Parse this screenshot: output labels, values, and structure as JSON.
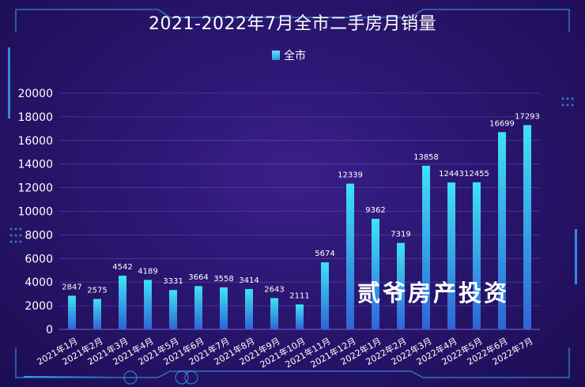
{
  "legend": {
    "label": "全市"
  },
  "watermark": "贰爷房产投资",
  "colors": {
    "bar_top": "#3ee3f5",
    "bar_bottom": "#2e64d8",
    "grid": "#6a55b5",
    "text": "#ffffff"
  },
  "chart_data": {
    "type": "bar",
    "title": "2021-2022年7月全市二手房月销量",
    "categories": [
      "2021年1月",
      "2021年2月",
      "2021年3月",
      "2021年4月",
      "2021年5月",
      "2021年6月",
      "2021年7月",
      "2021年8月",
      "2021年9月",
      "2021年10月",
      "2021年11月",
      "2021年12月",
      "2022年1月",
      "2022年2月",
      "2022年3月",
      "2022年4月",
      "2022年5月",
      "2022年6月",
      "2022年7月"
    ],
    "series": [
      {
        "name": "全市",
        "values": [
          2847,
          2575,
          4542,
          4189,
          3331,
          3664,
          3558,
          3414,
          2643,
          2111,
          5674,
          12339,
          9362,
          7319,
          13858,
          12443,
          12455,
          16699,
          17293
        ]
      }
    ],
    "yticks": [
      0,
      2000,
      4000,
      6000,
      8000,
      10000,
      12000,
      14000,
      16000,
      18000,
      20000
    ],
    "ylim": [
      0,
      20000
    ],
    "grid": true,
    "legend_position": "top-center"
  }
}
